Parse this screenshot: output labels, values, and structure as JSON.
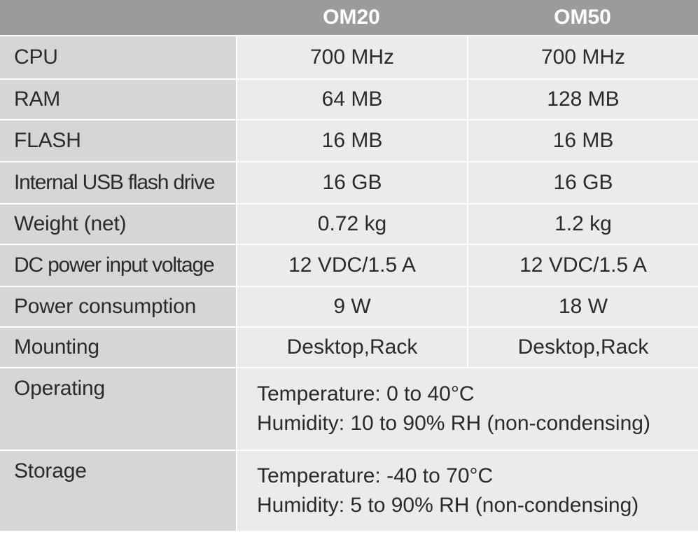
{
  "header": {
    "corner": "",
    "col1": "OM20",
    "col2": "OM50"
  },
  "rows": [
    {
      "label": "CPU",
      "om20": "700 MHz",
      "om50": "700 MHz"
    },
    {
      "label": "RAM",
      "om20": "64 MB",
      "om50": "128 MB"
    },
    {
      "label": "FLASH",
      "om20": "16 MB",
      "om50": "16 MB"
    },
    {
      "label": "Internal USB flash drive",
      "om20": "16 GB",
      "om50": "16 GB"
    },
    {
      "label": "Weight (net)",
      "om20": "0.72 kg",
      "om50": "1.2 kg"
    },
    {
      "label": "DC power input voltage",
      "om20": "12 VDC/1.5 A",
      "om50": "12 VDC/1.5 A"
    },
    {
      "label": "Power consumption",
      "om20": "9 W",
      "om50": "18 W"
    },
    {
      "label": "Mounting",
      "om20": "Desktop,Rack",
      "om50": "Desktop,Rack"
    }
  ],
  "environment": [
    {
      "label": "Operating",
      "line1": "Temperature: 0 to 40°C",
      "line2": "Humidity: 10 to 90% RH (non-condensing)"
    },
    {
      "label": "Storage",
      "line1": "Temperature: -40 to 70°C",
      "line2": "Humidity: 5 to 90% RH (non-condensing)"
    }
  ],
  "colors": {
    "header_bg": "#9b9b9b",
    "label_bg": "#d6d6d6",
    "value_bg": "#ebebeb",
    "text": "#2b2b2b"
  }
}
